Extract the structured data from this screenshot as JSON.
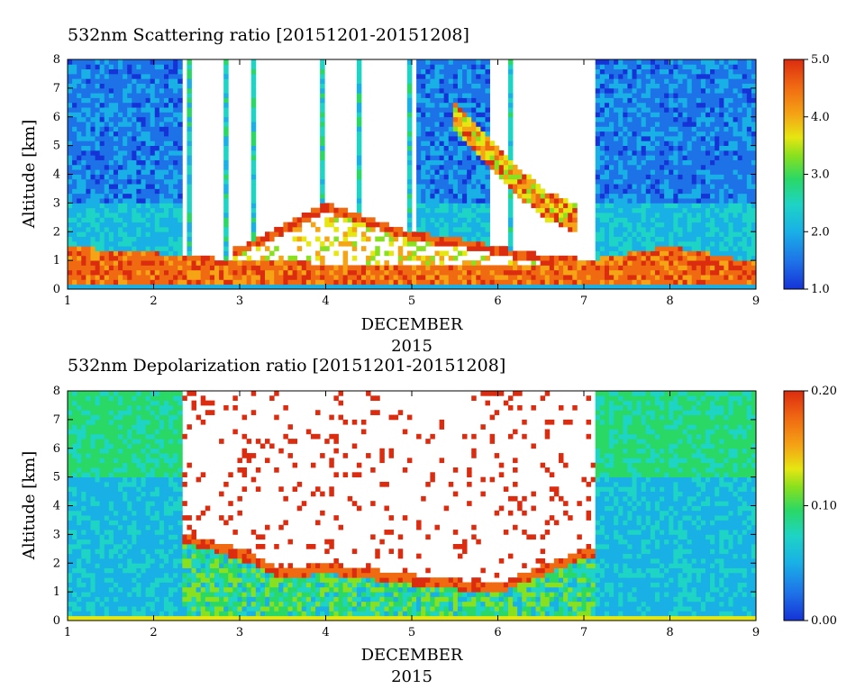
{
  "chart_data": [
    {
      "type": "heatmap",
      "title": "532nm Scattering ratio [20151201-20151208]",
      "xlabel": "DECEMBER",
      "xlabel2": "2015",
      "ylabel": "Altitude [km]",
      "x_ticks": [
        "1",
        "2",
        "3",
        "4",
        "5",
        "6",
        "7",
        "8",
        "9"
      ],
      "y_ticks": [
        "0",
        "1",
        "2",
        "3",
        "4",
        "5",
        "6",
        "7",
        "8"
      ],
      "xlim": [
        1,
        9
      ],
      "ylim": [
        0,
        8
      ],
      "colorbar": {
        "range": [
          1.0,
          5.0
        ],
        "ticks": [
          "1.0",
          "2.0",
          "3.0",
          "4.0",
          "5.0"
        ]
      },
      "features": [
        {
          "name": "boundary_layer",
          "x": [
            1,
            1.4,
            2.3,
            3.0,
            4.0,
            5.0,
            6.0,
            7.0,
            8.0,
            8.9
          ],
          "top_km": [
            1.5,
            1.4,
            1.2,
            1.0,
            0.9,
            0.9,
            0.8,
            1.0,
            1.5,
            1.0
          ]
        },
        {
          "name": "cloud_layer_top",
          "x": [
            3.0,
            3.5,
            4.0,
            4.5,
            5.0,
            5.5,
            6.0,
            6.5
          ],
          "top_km": [
            1.5,
            2.2,
            3.0,
            2.5,
            2.0,
            1.8,
            1.5,
            1.2
          ]
        },
        {
          "name": "descending_cirrus",
          "x": [
            5.5,
            6.0,
            6.5,
            6.9
          ],
          "top_km": [
            6.0,
            4.5,
            3.0,
            2.5
          ]
        }
      ]
    },
    {
      "type": "heatmap",
      "title": "532nm Depolarization ratio [20151201-20151208]",
      "xlabel": "DECEMBER",
      "xlabel2": "2015",
      "ylabel": "Altitude [km]",
      "x_ticks": [
        "1",
        "2",
        "3",
        "4",
        "5",
        "6",
        "7",
        "8",
        "9"
      ],
      "y_ticks": [
        "0",
        "1",
        "2",
        "3",
        "4",
        "5",
        "6",
        "7",
        "8"
      ],
      "xlim": [
        1,
        9
      ],
      "ylim": [
        0,
        8
      ],
      "colorbar": {
        "range": [
          0.0,
          0.2
        ],
        "ticks": [
          "0.00",
          "0.10",
          "0.20"
        ]
      },
      "features": [
        {
          "name": "cloud_layer_top",
          "x": [
            2.4,
            3.0,
            3.5,
            4.0,
            5.0,
            6.0,
            7.0
          ],
          "top_km": [
            3.0,
            2.5,
            1.8,
            2.0,
            1.6,
            1.3,
            2.5
          ]
        }
      ]
    }
  ],
  "colors": {
    "scale": [
      "#1533d6",
      "#1e72e8",
      "#19b0e6",
      "#1ed4c4",
      "#2ad866",
      "#88e01f",
      "#e6e612",
      "#f4a414",
      "#f06a12",
      "#dc2c10"
    ],
    "nodata": "#ffffff"
  }
}
